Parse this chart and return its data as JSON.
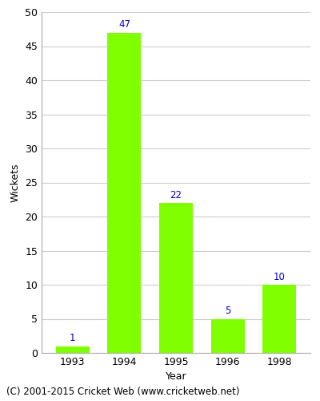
{
  "years": [
    "1993",
    "1994",
    "1995",
    "1996",
    "1998"
  ],
  "values": [
    1,
    47,
    22,
    5,
    10
  ],
  "bar_color": "#7FFF00",
  "bar_edgecolor": "#7FFF00",
  "label_color": "#0000CC",
  "xlabel": "Year",
  "ylabel": "Wickets",
  "ylim": [
    0,
    50
  ],
  "yticks": [
    0,
    5,
    10,
    15,
    20,
    25,
    30,
    35,
    40,
    45,
    50
  ],
  "footer": "(C) 2001-2015 Cricket Web (www.cricketweb.net)",
  "label_fontsize": 8.5,
  "axis_fontsize": 9,
  "footer_fontsize": 8.5,
  "background_color": "#ffffff",
  "grid_color": "#cccccc",
  "bar_width": 0.65
}
